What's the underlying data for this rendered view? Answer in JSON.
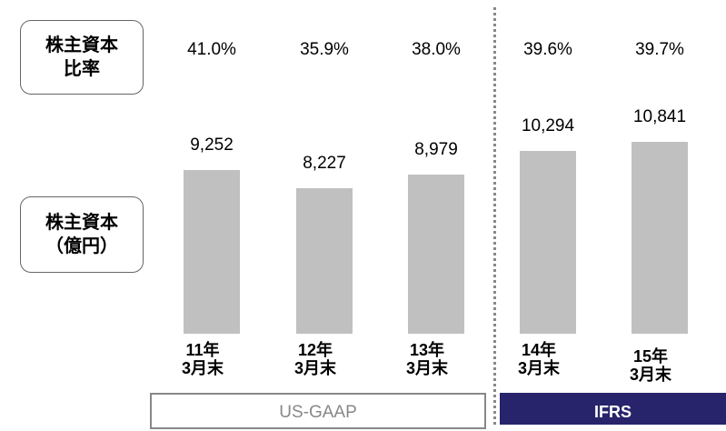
{
  "chart_data": {
    "type": "bar",
    "row_labels": [
      "株主資本\n比率",
      "株主資本\n（億円）"
    ],
    "categories": [
      "11年\n3月末",
      "12年\n3月末",
      "13年\n3月末",
      "14年\n3月末",
      "15年\n3月末"
    ],
    "values": [
      9252,
      8227,
      8979,
      10294,
      10841
    ],
    "value_labels": [
      "9,252",
      "8,227",
      "8,979",
      "10,294",
      "10,841"
    ],
    "equity_ratio_labels": [
      "41.0%",
      "35.9%",
      "38.0%",
      "39.6%",
      "39.7%"
    ],
    "groups": [
      "US-GAAP",
      "IFRS"
    ],
    "color": "#c0c0c0",
    "ylim": [
      0,
      12000
    ]
  }
}
